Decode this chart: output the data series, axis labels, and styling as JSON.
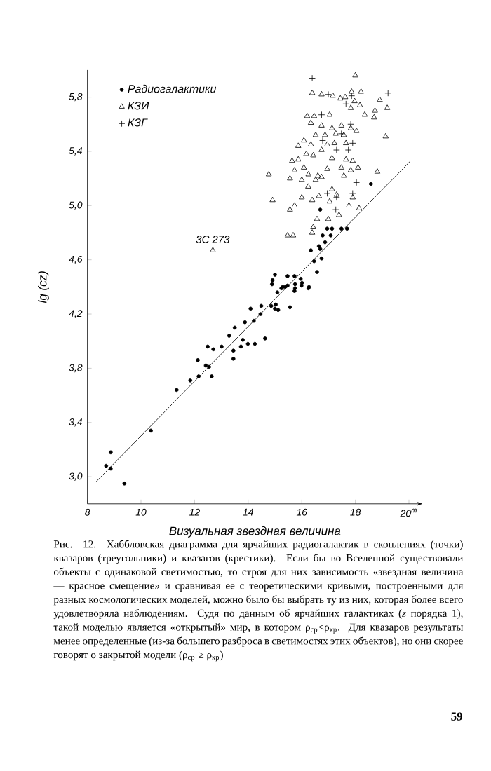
{
  "chart_data": {
    "type": "scatter",
    "xlabel": "Визуальная звездная величина",
    "ylabel": "lg (cz)",
    "xlim": [
      8,
      20.5
    ],
    "ylim": [
      2.8,
      6.0
    ],
    "xticks": [
      8,
      10,
      12,
      14,
      16,
      18,
      {
        "value": 20,
        "label": "20$^{m}$"
      }
    ],
    "yticks": [
      {
        "value": 3.0,
        "label": "3,0"
      },
      {
        "value": 3.4,
        "label": "3,4"
      },
      {
        "value": 3.8,
        "label": "3,8"
      },
      {
        "value": 4.2,
        "label": "4,2"
      },
      {
        "value": 4.6,
        "label": "4,6"
      },
      {
        "value": 5.0,
        "label": "5,0"
      },
      {
        "value": 5.4,
        "label": "5,4"
      },
      {
        "value": 5.8,
        "label": "5,8"
      }
    ],
    "legend": "top left",
    "series": [
      {
        "name": "Радиогалактики",
        "color": "#000000",
        "marker": "circle",
        "x": [
          8.7,
          8.87,
          8.87,
          9.38,
          10.37,
          11.33,
          11.84,
          12.12,
          12.15,
          12.49,
          12.42,
          12.54,
          12.64,
          12.7,
          13.01,
          13.29,
          13.45,
          13.45,
          13.5,
          13.73,
          13.8,
          13.88,
          13.99,
          14.09,
          14.21,
          14.25,
          14.46,
          14.49,
          14.63,
          14.91,
          14.86,
          15.0,
          15.09,
          15.03,
          15.12,
          15.29,
          15.38,
          15.56,
          15.75,
          15.75,
          16.01,
          16.27,
          18.58,
          16.69,
          16.95,
          17.13,
          17.48,
          17.69,
          16.78,
          17.08,
          16.87,
          16.64,
          16.34,
          16.69,
          16.74,
          16.46,
          16.57,
          15.0,
          15.47,
          15.73,
          14.89,
          15.24,
          15.47,
          15.99,
          15.73,
          16.25,
          15.96
        ],
        "values": [
          3.08,
          3.18,
          3.06,
          2.95,
          3.34,
          3.64,
          3.71,
          3.86,
          3.74,
          3.96,
          3.82,
          3.81,
          3.74,
          3.94,
          3.96,
          4.04,
          3.93,
          3.87,
          4.1,
          3.96,
          4.01,
          4.14,
          3.98,
          4.24,
          4.15,
          3.98,
          4.2,
          4.26,
          4.02,
          4.45,
          4.26,
          4.24,
          4.36,
          4.27,
          4.23,
          4.4,
          4.4,
          4.25,
          4.42,
          4.39,
          4.43,
          4.4,
          5.16,
          4.97,
          4.83,
          4.83,
          4.83,
          4.83,
          4.78,
          4.78,
          4.73,
          4.7,
          4.67,
          4.68,
          4.61,
          4.59,
          4.51,
          4.49,
          4.48,
          4.48,
          4.42,
          4.39,
          4.41,
          4.41,
          4.37,
          4.39,
          4.46
        ]
      },
      {
        "name": "КЗИ",
        "color": "#000000",
        "marker": "triangle",
        "x": [
          18.0,
          16.39,
          16.74,
          17.16,
          17.44,
          17.62,
          17.86,
          18.21,
          17.97,
          18.17,
          17.83,
          18.91,
          19.19,
          18.73,
          18.35,
          16.2,
          16.46,
          17.04,
          18.7,
          16.34,
          16.74,
          17.13,
          17.48,
          17.83,
          18.04,
          16.52,
          16.87,
          17.27,
          17.57,
          19.13,
          16.08,
          16.34,
          15.87,
          16.95,
          17.22,
          17.65,
          16.17,
          16.43,
          16.74,
          17.13,
          17.65,
          17.9,
          15.64,
          15.87,
          16.08,
          15.73,
          16.25,
          16.6,
          16.95,
          17.48,
          17.83,
          18.1,
          18.82,
          14.77,
          15.56,
          16.0,
          16.52,
          16.74,
          17.57,
          16.24,
          17.13,
          14.91,
          16.0,
          16.39,
          16.64,
          17.3,
          17.9,
          17.04,
          15.73,
          15.56,
          17.76,
          18.14,
          17.39,
          16.57,
          16.99,
          16.43,
          16.39,
          15.47,
          15.68,
          12.68
        ],
        "values": [
          5.96,
          5.83,
          5.82,
          5.81,
          5.79,
          5.8,
          5.84,
          5.84,
          5.77,
          5.74,
          5.72,
          5.78,
          5.72,
          5.7,
          5.67,
          5.66,
          5.66,
          5.67,
          5.65,
          5.61,
          5.59,
          5.57,
          5.59,
          5.57,
          5.55,
          5.52,
          5.52,
          5.53,
          5.52,
          5.51,
          5.48,
          5.45,
          5.44,
          5.45,
          5.46,
          5.46,
          5.38,
          5.37,
          5.41,
          5.35,
          5.34,
          5.33,
          5.33,
          5.34,
          5.28,
          5.26,
          5.23,
          5.22,
          5.27,
          5.28,
          5.26,
          5.28,
          5.25,
          5.23,
          5.2,
          5.19,
          5.19,
          5.21,
          5.22,
          5.14,
          5.12,
          5.04,
          5.06,
          5.04,
          5.07,
          5.08,
          5.06,
          5.03,
          5.0,
          4.97,
          5.0,
          4.98,
          4.93,
          4.9,
          4.9,
          4.84,
          4.8,
          4.78,
          4.78,
          4.67
        ]
      },
      {
        "name": "КЗГ",
        "color": "#000000",
        "marker": "cross",
        "x": [
          16.39,
          16.99,
          17.86,
          19.22,
          17.65,
          16.74,
          17.83,
          17.48,
          17.9,
          17.3,
          17.74,
          18.04,
          16.95,
          17.3,
          17.9,
          17.27,
          16.78
        ],
        "values": [
          5.94,
          5.82,
          5.81,
          5.83,
          5.75,
          5.67,
          5.6,
          5.53,
          5.46,
          5.41,
          5.41,
          5.17,
          5.09,
          5.06,
          5.09,
          4.97,
          5.48
        ]
      },
      {
        "type": "line",
        "color": "#000000",
        "marker": "none",
        "x": [
          8.31,
          20.06
        ],
        "values": [
          2.96,
          5.33
        ]
      }
    ],
    "annotations": [
      {
        "text": "3C 273",
        "x": 12.68,
        "y": 4.67
      },
      "Рис. 12. Хаббловская диаграмма для ярчайших радиогалактик в скоплениях (точки) квазаров (треугольники) и квазагов (крестики). Если бы во Вселенной существовали объекты с одинаковой светимостью, то строя для них зависимость «звездная величина — красное смещение» и сравнивая ее с теоретическими кривыми, построенными для разных космологических моделей, можно было бы выбрать ту из них, которая более всего удовлетворяла наблюдениям. Судя по данным об ярчайших галактиках (*z* порядка 1), такой моделью является «открытый» мир, в котором ρ$_{ср}$<ρ$_{кр}$. Для квазаров результаты менее определенные (из-за большего разброса в светимостях этих объектов), но они скорее говорят о закрытой модели (ρ$_{ср}$ ≥ ρ$_{кр}$)",
      "59"
    ]
  }
}
